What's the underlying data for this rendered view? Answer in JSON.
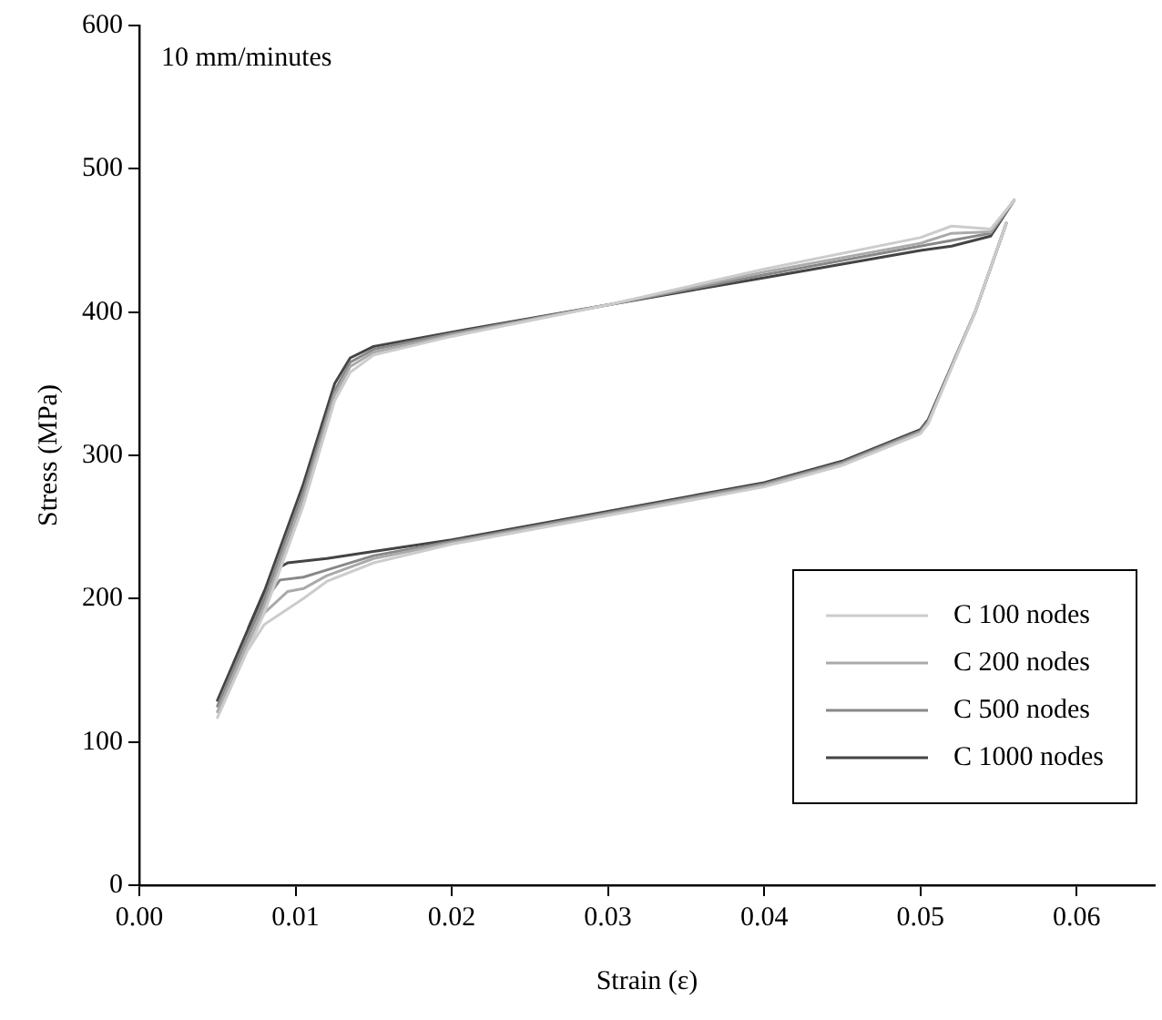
{
  "chart_data": {
    "type": "line",
    "xlabel": "Strain (ε)",
    "ylabel": "Stress (MPa)",
    "annotations": [
      "10 mm/minutes"
    ],
    "xlim": [
      0,
      0.065
    ],
    "xticks": [
      {
        "value": 0,
        "label": "0.00"
      },
      {
        "value": 0.01,
        "label": "0.01"
      },
      {
        "value": 0.02,
        "label": "0.02"
      },
      {
        "value": 0.03,
        "label": "0.03"
      },
      {
        "value": 0.04,
        "label": "0.04"
      },
      {
        "value": 0.05,
        "label": "0.05"
      },
      {
        "value": 0.06,
        "label": "0.06"
      }
    ],
    "ylim": [
      0,
      600
    ],
    "yticks": [
      0,
      100,
      200,
      300,
      400,
      500,
      600
    ],
    "grid": false,
    "legend": "bottom right",
    "marker": "none",
    "line_style": "solid",
    "series": [
      {
        "name": "C 100 nodes",
        "color": "#cccccc",
        "x": [
          0.005,
          0.008,
          0.0105,
          0.0125,
          0.0135,
          0.015,
          0.02,
          0.03,
          0.04,
          0.05,
          0.052,
          0.0545,
          0.056
        ],
        "values": [
          117,
          190,
          265,
          338,
          358,
          370,
          383,
          405,
          430,
          452,
          460,
          458,
          478
        ]
      },
      {
        "name": "C 200 nodes",
        "color": "#aaaaaa",
        "x": [
          0.005,
          0.008,
          0.0105,
          0.0125,
          0.0135,
          0.015,
          0.02,
          0.03,
          0.04,
          0.05,
          0.052,
          0.0545,
          0.056
        ],
        "values": [
          121,
          195,
          270,
          342,
          362,
          372,
          384,
          405,
          428,
          448,
          455,
          456,
          478
        ]
      },
      {
        "name": "C 500 nodes",
        "color": "#888888",
        "x": [
          0.005,
          0.008,
          0.0105,
          0.0125,
          0.0135,
          0.015,
          0.02,
          0.03,
          0.04,
          0.05,
          0.052,
          0.0545,
          0.056
        ],
        "values": [
          125,
          200,
          275,
          345,
          365,
          374,
          385,
          405,
          426,
          446,
          450,
          455,
          478
        ]
      },
      {
        "name": "C 1000 nodes",
        "color": "#444444",
        "x": [
          0.005,
          0.008,
          0.0105,
          0.0125,
          0.0135,
          0.015,
          0.02,
          0.03,
          0.04,
          0.05,
          0.052,
          0.0545,
          0.056
        ],
        "values": [
          129,
          205,
          280,
          350,
          368,
          376,
          386,
          405,
          424,
          443,
          446,
          453,
          478
        ]
      },
      {
        "color": "#cccccc",
        "x": [
          0.007,
          0.008,
          0.0105,
          0.012,
          0.015,
          0.02,
          0.03,
          0.04,
          0.045,
          0.05,
          0.0505,
          0.0535,
          0.0555
        ],
        "values": [
          165,
          182,
          200,
          212,
          225,
          238,
          258,
          278,
          293,
          315,
          322,
          400,
          462
        ]
      },
      {
        "color": "#aaaaaa",
        "x": [
          0.007,
          0.008,
          0.0095,
          0.0105,
          0.012,
          0.015,
          0.02,
          0.03,
          0.04,
          0.045,
          0.05,
          0.0505,
          0.0535,
          0.0555
        ],
        "values": [
          170,
          190,
          205,
          207,
          216,
          228,
          239,
          259,
          279,
          294,
          316,
          323,
          400,
          462
        ]
      },
      {
        "color": "#888888",
        "x": [
          0.007,
          0.008,
          0.009,
          0.0105,
          0.012,
          0.015,
          0.02,
          0.03,
          0.04,
          0.045,
          0.05,
          0.0505,
          0.0535,
          0.0555
        ],
        "values": [
          175,
          198,
          213,
          215,
          220,
          230,
          240,
          260,
          280,
          295,
          317,
          324,
          400,
          462
        ]
      },
      {
        "color": "#444444",
        "x": [
          0.007,
          0.008,
          0.009,
          0.0095,
          0.012,
          0.015,
          0.02,
          0.03,
          0.04,
          0.045,
          0.05,
          0.0505,
          0.0535,
          0.0555
        ],
        "values": [
          180,
          205,
          222,
          225,
          228,
          233,
          241,
          261,
          281,
          296,
          318,
          325,
          400,
          462
        ]
      }
    ]
  }
}
